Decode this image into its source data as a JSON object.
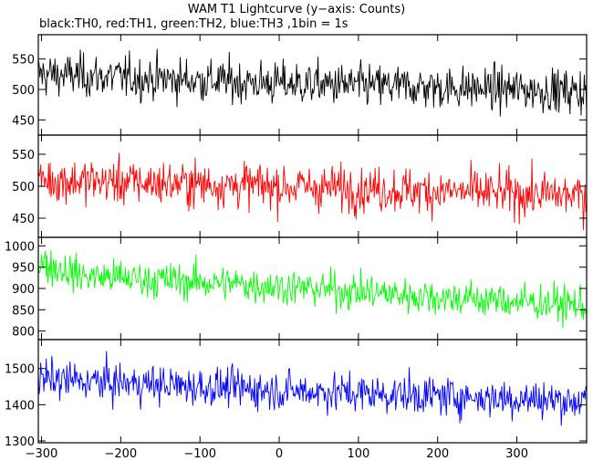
{
  "header": {
    "title": "WAM T1 Lightcurve (y−axis: Counts)",
    "subtitle": "black:TH0, red:TH1, green:TH2, blue:TH3 ,1bin = 1s"
  },
  "chart_data": [
    {
      "type": "line",
      "name": "TH0",
      "color": "#000000",
      "x_range": [
        -304,
        388
      ],
      "xticks": [
        -300,
        -200,
        -100,
        0,
        100,
        200,
        300
      ],
      "ylim": [
        425,
        590
      ],
      "yticks": [
        450,
        500,
        550
      ],
      "trend": [
        [
          -300,
          525
        ],
        [
          0,
          510
        ],
        [
          388,
          497
        ]
      ],
      "noise_sd": 25
    },
    {
      "type": "line",
      "name": "TH1",
      "color": "#ff0000",
      "x_range": [
        -304,
        388
      ],
      "xticks": [
        -300,
        -200,
        -100,
        0,
        100,
        200,
        300
      ],
      "ylim": [
        420,
        580
      ],
      "yticks": [
        450,
        500,
        550
      ],
      "trend": [
        [
          -300,
          510
        ],
        [
          0,
          500
        ],
        [
          388,
          485
        ]
      ],
      "noise_sd": 25
    },
    {
      "type": "line",
      "name": "TH2",
      "color": "#00ff00",
      "x_range": [
        -304,
        388
      ],
      "xticks": [
        -300,
        -200,
        -100,
        0,
        100,
        200,
        300
      ],
      "ylim": [
        780,
        1020
      ],
      "yticks": [
        800,
        850,
        900,
        950,
        1000
      ],
      "trend": [
        [
          -300,
          960
        ],
        [
          -250,
          930
        ],
        [
          0,
          905
        ],
        [
          200,
          880
        ],
        [
          388,
          860
        ]
      ],
      "noise_sd": 30
    },
    {
      "type": "line",
      "name": "TH3",
      "color": "#0000ff",
      "x_range": [
        -304,
        388
      ],
      "xticks": [
        -300,
        -200,
        -100,
        0,
        100,
        200,
        300
      ],
      "ylim": [
        1295,
        1580
      ],
      "yticks": [
        1300,
        1400,
        1500
      ],
      "trend": [
        [
          -300,
          1470
        ],
        [
          0,
          1440
        ],
        [
          388,
          1410
        ]
      ],
      "noise_sd": 38
    }
  ]
}
